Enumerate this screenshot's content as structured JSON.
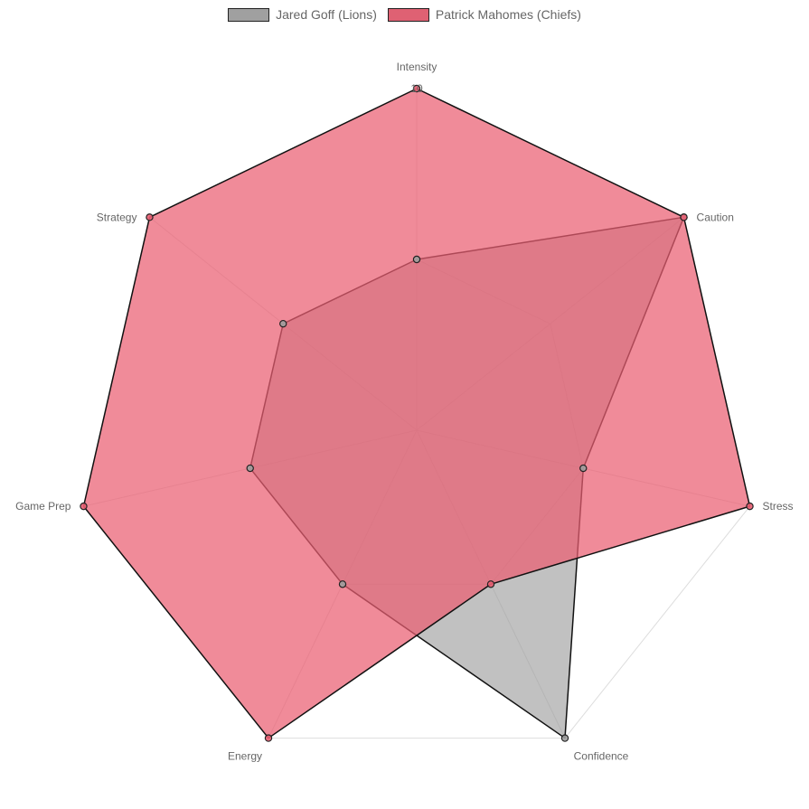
{
  "chart_data": {
    "type": "radar",
    "axes": [
      "Intensity",
      "Caution",
      "Stress",
      "Confidence",
      "Energy",
      "Game Prep",
      "Strategy"
    ],
    "r_range": [
      0,
      10
    ],
    "ticks_visible": [
      "10"
    ],
    "grid": true,
    "legend_position": "top",
    "series": [
      {
        "name": "Jared Goff (Lions)",
        "values": [
          5,
          10,
          5,
          10,
          5,
          5,
          5
        ],
        "fill_color": "#a0a0a0",
        "fill_opacity": 0.65,
        "border_color": "#111111"
      },
      {
        "name": "Patrick Mahomes (Chiefs)",
        "values": [
          10,
          10,
          10,
          5,
          10,
          10,
          10
        ],
        "fill_color": "#ea5e72",
        "fill_opacity": 0.72,
        "border_color": "#111111"
      }
    ]
  }
}
